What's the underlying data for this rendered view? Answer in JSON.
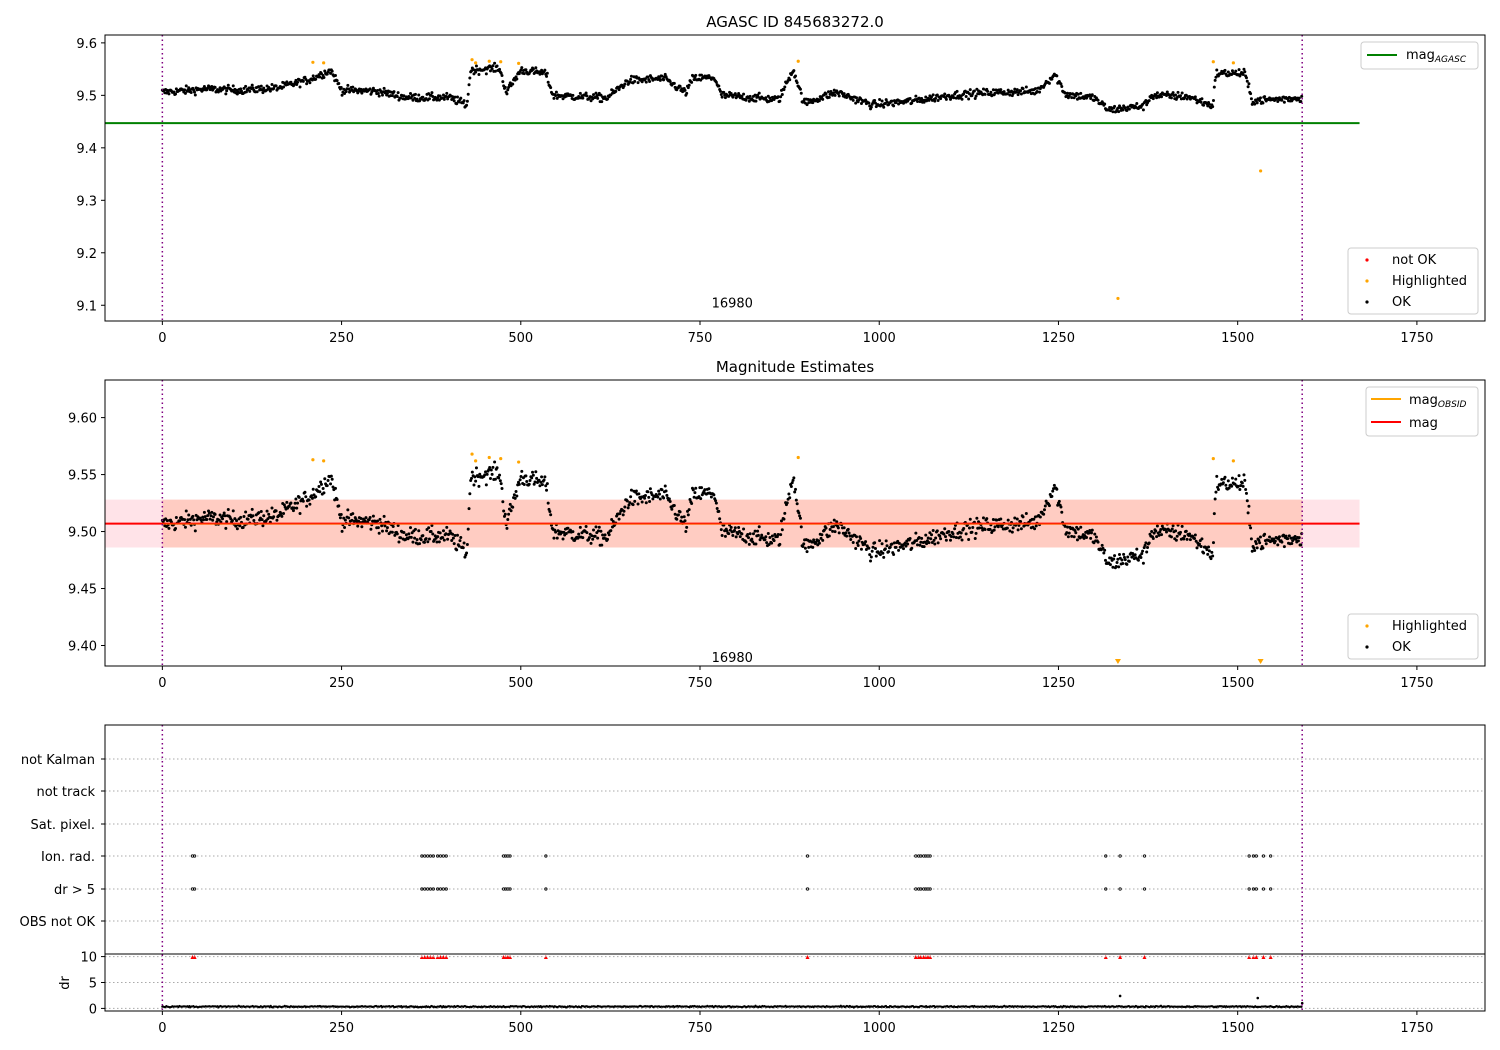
{
  "chart_data": [
    {
      "type": "scatter",
      "title": "AGASC ID 845683272.0",
      "xlim": [
        -80,
        1845
      ],
      "ylim": [
        9.07,
        9.615
      ],
      "x_ticks": [
        0,
        250,
        500,
        750,
        1000,
        1250,
        1500,
        1750
      ],
      "y_ticks": [
        9.1,
        9.2,
        9.3,
        9.4,
        9.5,
        9.6
      ],
      "vlines": [
        0,
        1590
      ],
      "annotation": {
        "x": 795,
        "y": 9.105,
        "text": "16980"
      },
      "lines": [
        {
          "name": "mag",
          "subscript": "AGASC",
          "y": 9.447,
          "x0": -80,
          "x1": 1670,
          "color": "#008000"
        }
      ],
      "legend_lines_position": "upper right",
      "legend_points_position": "lower right",
      "legend_points": [
        {
          "name": "not OK",
          "color": "#ff0000"
        },
        {
          "name": "Highlighted",
          "color": "#ffa500"
        },
        {
          "name": "OK",
          "color": "#000000"
        }
      ],
      "highlighted_points": [
        [
          210,
          9.563
        ],
        [
          225,
          9.562
        ],
        [
          432,
          9.568
        ],
        [
          437,
          9.562
        ],
        [
          456,
          9.565
        ],
        [
          472,
          9.564
        ],
        [
          497,
          9.561
        ],
        [
          887,
          9.565
        ],
        [
          1466,
          9.564
        ],
        [
          1494,
          9.562
        ],
        [
          1333,
          9.113
        ],
        [
          1532,
          9.356
        ]
      ]
    },
    {
      "type": "scatter",
      "title": "Magnitude Estimates",
      "xlim": [
        -80,
        1845
      ],
      "ylim": [
        9.382,
        9.633
      ],
      "x_ticks": [
        0,
        250,
        500,
        750,
        1000,
        1250,
        1500,
        1750
      ],
      "y_ticks": [
        9.4,
        9.45,
        9.5,
        9.55,
        9.6
      ],
      "vlines": [
        0,
        1590
      ],
      "annotation": {
        "x": 795,
        "y": 9.39,
        "text": "16980"
      },
      "mag_line": {
        "y": 9.507,
        "x0": -80,
        "x1": 1670,
        "color": "#ff0000"
      },
      "band_red": {
        "y0": 9.486,
        "y1": 9.528,
        "x0": -80,
        "x1": 1670
      },
      "band_orange": {
        "y0": 9.486,
        "y1": 9.528,
        "x0": 0,
        "x1": 1590
      },
      "legend_lines_position": "upper right",
      "legend_points_position": "lower right",
      "legend_lines": [
        {
          "name": "mag",
          "subscript": "OBSID",
          "color": "#ffa500"
        },
        {
          "name": "mag",
          "subscript": "",
          "color": "#ff0000"
        }
      ],
      "legend_points": [
        {
          "name": "Highlighted",
          "color": "#ffa500"
        },
        {
          "name": "OK",
          "color": "#000000"
        }
      ],
      "highlighted_points": [
        [
          210,
          9.563
        ],
        [
          225,
          9.562
        ],
        [
          432,
          9.568
        ],
        [
          437,
          9.562
        ],
        [
          456,
          9.565
        ],
        [
          472,
          9.564
        ],
        [
          497,
          9.561
        ],
        [
          887,
          9.565
        ],
        [
          1466,
          9.564
        ],
        [
          1494,
          9.562
        ]
      ],
      "off_scale_markers": [
        1333,
        1532
      ]
    },
    {
      "type": "scatter",
      "title": "",
      "xlim": [
        -80,
        1845
      ],
      "x_ticks": [
        0,
        250,
        500,
        750,
        1000,
        1250,
        1500,
        1750
      ],
      "vlines": [
        0,
        1590
      ],
      "flag_rows": [
        "not Kalman",
        "not track",
        "Sat. pixel.",
        "Ion. rad.",
        "dr > 5",
        "OBS not OK"
      ],
      "flag_points_x": [
        42,
        45,
        362,
        366,
        370,
        374,
        378,
        384,
        388,
        392,
        396,
        476,
        479,
        482,
        485,
        535,
        900,
        1051,
        1055,
        1058,
        1062,
        1065,
        1068,
        1071,
        1316,
        1336,
        1370,
        1516,
        1522,
        1526,
        1536,
        1546
      ],
      "dr_ylabel": "dr",
      "dr_ylim": [
        -0.5,
        10.5
      ],
      "dr_ticks": [
        0,
        5,
        10
      ],
      "dr_level": 0.35,
      "dr_spikes": [
        [
          1336,
          2.4
        ],
        [
          1528,
          2.0
        ],
        [
          1590,
          1.0
        ]
      ]
    }
  ]
}
